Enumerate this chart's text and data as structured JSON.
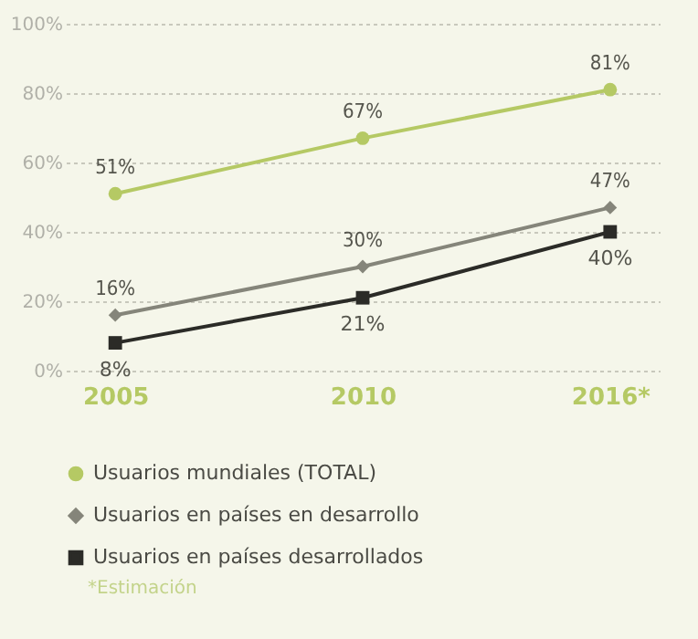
{
  "chart_data": {
    "type": "line",
    "categories": [
      "2005",
      "2010",
      "2016*"
    ],
    "series": [
      {
        "name": "Usuarios mundiales (TOTAL)",
        "color": "#b5c964",
        "marker": "circle",
        "values": [
          51,
          67,
          81
        ],
        "value_labels": [
          "51%",
          "67%",
          "81%"
        ]
      },
      {
        "name": "Usuarios en países en desarrollo",
        "color": "#85857a",
        "marker": "diamond",
        "values": [
          16,
          30,
          47
        ],
        "value_labels": [
          "16%",
          "30%",
          "47%"
        ]
      },
      {
        "name": "Usuarios en países desarrollados",
        "color": "#2b2b27",
        "marker": "square",
        "values": [
          8,
          21,
          40
        ],
        "value_labels": [
          "8%",
          "21%",
          "40%"
        ]
      }
    ],
    "ylim": [
      0,
      100
    ],
    "yticks": [
      {
        "value": 0,
        "label": "0%"
      },
      {
        "value": 20,
        "label": "20%"
      },
      {
        "value": 40,
        "label": "40%"
      },
      {
        "value": 60,
        "label": "60%"
      },
      {
        "value": 80,
        "label": "80%"
      },
      {
        "value": 100,
        "label": "100%"
      }
    ],
    "grid": "y",
    "legend": "bottom",
    "line_style": "solid",
    "annotations": [
      "*Estimación"
    ]
  }
}
